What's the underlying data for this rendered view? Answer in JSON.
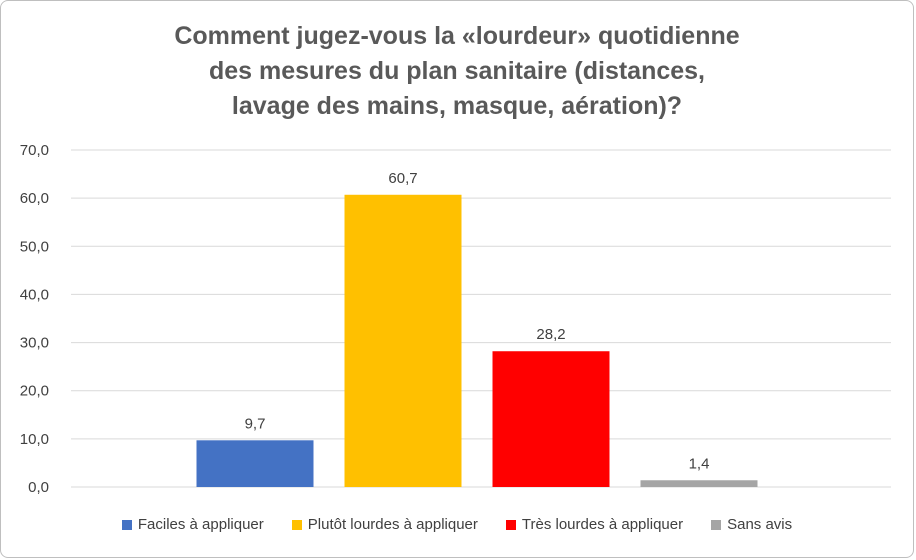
{
  "chart_data": {
    "type": "bar",
    "title_lines": [
      "Comment jugez-vous la «lourdeur» quotidienne",
      "des mesures du plan sanitaire (distances,",
      "lavage des mains, masque, aération)?"
    ],
    "categories": [
      "Faciles à appliquer",
      "Plutôt lourdes à appliquer",
      "Très lourdes à appliquer",
      "Sans avis"
    ],
    "values": [
      9.7,
      60.7,
      28.2,
      1.4
    ],
    "value_labels": [
      "9,7",
      "60,7",
      "28,2",
      "1,4"
    ],
    "colors": [
      "#4472c4",
      "#ffc000",
      "#ff0000",
      "#a5a5a5"
    ],
    "ylim": [
      0,
      70
    ],
    "yticks": [
      {
        "value": 0,
        "label": "0,0"
      },
      {
        "value": 10,
        "label": "10,0"
      },
      {
        "value": 20,
        "label": "20,0"
      },
      {
        "value": 30,
        "label": "30,0"
      },
      {
        "value": 40,
        "label": "40,0"
      },
      {
        "value": 50,
        "label": "50,0"
      },
      {
        "value": 60,
        "label": "60,0"
      },
      {
        "value": 70,
        "label": "70,0"
      }
    ],
    "grid": true,
    "legend_position": "bottom",
    "xlabel": "",
    "ylabel": ""
  }
}
